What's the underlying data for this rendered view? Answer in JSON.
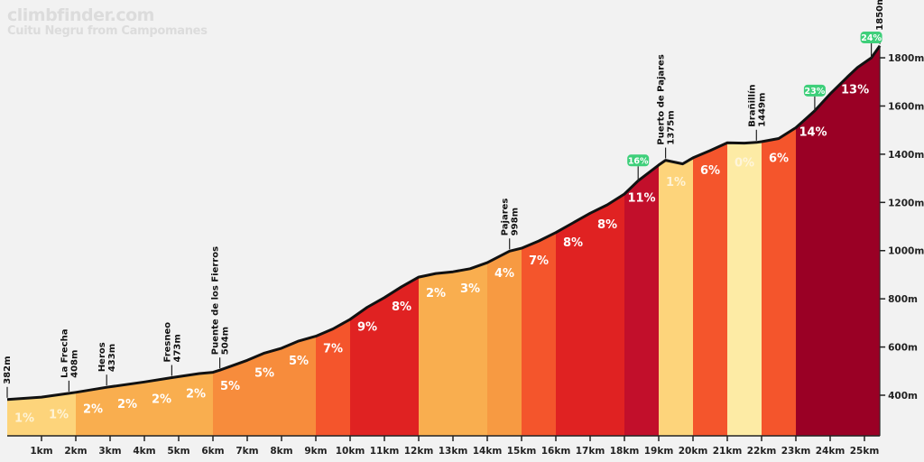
{
  "header": {
    "site": "climbfinder.com",
    "climb_name": "Cuitu Negru from Campomanes"
  },
  "chart_data": {
    "type": "area",
    "title": "Cuitu Negru from Campomanes",
    "xlabel": "",
    "ylabel": "",
    "x_unit": "km",
    "y_unit": "m",
    "xlim": [
      0,
      25.45
    ],
    "ylim": [
      230,
      1860
    ],
    "x_ticks": [
      1,
      2,
      3,
      4,
      5,
      6,
      7,
      8,
      9,
      10,
      11,
      12,
      13,
      14,
      15,
      16,
      17,
      18,
      19,
      20,
      21,
      22,
      23,
      24,
      25
    ],
    "x_tick_labels": [
      "1km",
      "2km",
      "3km",
      "4km",
      "5km",
      "6km",
      "7km",
      "8km",
      "9km",
      "10km",
      "11km",
      "12km",
      "13km",
      "14km",
      "15km",
      "16km",
      "17km",
      "18km",
      "19km",
      "20km",
      "21km",
      "22km",
      "23km",
      "24km",
      "25km"
    ],
    "y_ticks": [
      400,
      600,
      800,
      1000,
      1200,
      1400,
      1600,
      1800
    ],
    "y_tick_labels": [
      "400m",
      "600m",
      "800m",
      "1000m",
      "1200m",
      "1400m",
      "1600m",
      "1800m"
    ],
    "y_axis_position": "right",
    "grid": false,
    "profile": [
      [
        0,
        382
      ],
      [
        1,
        392
      ],
      [
        1.8,
        408
      ],
      [
        2,
        412
      ],
      [
        2.9,
        433
      ],
      [
        4,
        455
      ],
      [
        4.8,
        473
      ],
      [
        5.6,
        490
      ],
      [
        6,
        495
      ],
      [
        6.2,
        504
      ],
      [
        7,
        545
      ],
      [
        7.5,
        575
      ],
      [
        8,
        595
      ],
      [
        8.5,
        625
      ],
      [
        9,
        645
      ],
      [
        9.5,
        675
      ],
      [
        10,
        715
      ],
      [
        10.5,
        765
      ],
      [
        11,
        805
      ],
      [
        11.5,
        850
      ],
      [
        12,
        890
      ],
      [
        12.5,
        905
      ],
      [
        13,
        912
      ],
      [
        13.5,
        925
      ],
      [
        14,
        950
      ],
      [
        14.65,
        998
      ],
      [
        15,
        1010
      ],
      [
        15.5,
        1040
      ],
      [
        16,
        1075
      ],
      [
        16.5,
        1115
      ],
      [
        17,
        1155
      ],
      [
        17.5,
        1190
      ],
      [
        18,
        1235
      ],
      [
        18.4,
        1290
      ],
      [
        19,
        1355
      ],
      [
        19.2,
        1375
      ],
      [
        19.7,
        1360
      ],
      [
        20,
        1385
      ],
      [
        20.5,
        1415
      ],
      [
        21,
        1447
      ],
      [
        21.5,
        1446
      ],
      [
        21.85,
        1449
      ],
      [
        22,
        1452
      ],
      [
        22.5,
        1465
      ],
      [
        23,
        1510
      ],
      [
        23.55,
        1580
      ],
      [
        24,
        1650
      ],
      [
        24.5,
        1720
      ],
      [
        24.8,
        1760
      ],
      [
        25.2,
        1800
      ],
      [
        25.45,
        1850
      ]
    ],
    "segments": [
      {
        "from": 0,
        "to": 1,
        "grade": "1%",
        "color": "#fdd47b"
      },
      {
        "from": 1,
        "to": 2,
        "grade": "1%",
        "color": "#fdd47b"
      },
      {
        "from": 2,
        "to": 3,
        "grade": "2%",
        "color": "#f9ae4f"
      },
      {
        "from": 3,
        "to": 4,
        "grade": "2%",
        "color": "#f9ae4f"
      },
      {
        "from": 4,
        "to": 5,
        "grade": "2%",
        "color": "#f9ae4f"
      },
      {
        "from": 5,
        "to": 6,
        "grade": "2%",
        "color": "#f9ae4f"
      },
      {
        "from": 6,
        "to": 7,
        "grade": "5%",
        "color": "#f78c3c"
      },
      {
        "from": 7,
        "to": 8,
        "grade": "5%",
        "color": "#f78c3c"
      },
      {
        "from": 8,
        "to": 9,
        "grade": "5%",
        "color": "#f78c3c"
      },
      {
        "from": 9,
        "to": 10,
        "grade": "7%",
        "color": "#f4552c"
      },
      {
        "from": 10,
        "to": 11,
        "grade": "9%",
        "color": "#e02222"
      },
      {
        "from": 11,
        "to": 12,
        "grade": "8%",
        "color": "#e02222"
      },
      {
        "from": 12,
        "to": 13,
        "grade": "2%",
        "color": "#f9ae4f"
      },
      {
        "from": 13,
        "to": 14,
        "grade": "3%",
        "color": "#f9ae4f"
      },
      {
        "from": 14,
        "to": 15,
        "grade": "4%",
        "color": "#f79a42"
      },
      {
        "from": 15,
        "to": 16,
        "grade": "7%",
        "color": "#f4552c"
      },
      {
        "from": 16,
        "to": 17,
        "grade": "8%",
        "color": "#e02222"
      },
      {
        "from": 17,
        "to": 18,
        "grade": "8%",
        "color": "#e02222"
      },
      {
        "from": 18,
        "to": 19,
        "grade": "11%",
        "color": "#c20f2b"
      },
      {
        "from": 19,
        "to": 20,
        "grade": "1%",
        "color": "#fdd47b"
      },
      {
        "from": 20,
        "to": 21,
        "grade": "6%",
        "color": "#f4552c"
      },
      {
        "from": 21,
        "to": 22,
        "grade": "0%",
        "color": "#fdeba5"
      },
      {
        "from": 22,
        "to": 23,
        "grade": "6%",
        "color": "#f4552c"
      },
      {
        "from": 23,
        "to": 24,
        "grade": "14%",
        "color": "#9a0025"
      },
      {
        "from": 24,
        "to": 25.45,
        "grade": "13%",
        "color": "#9a0025"
      }
    ],
    "waypoints": [
      {
        "km": 0,
        "name": "",
        "elevation": "382m"
      },
      {
        "km": 1.8,
        "name": "La Frecha",
        "elevation": "408m"
      },
      {
        "km": 2.9,
        "name": "Heros",
        "elevation": "433m"
      },
      {
        "km": 4.8,
        "name": "Fresneo",
        "elevation": "473m"
      },
      {
        "km": 6.2,
        "name": "Puente de los Fierros",
        "elevation": "504m"
      },
      {
        "km": 14.65,
        "name": "Pajares",
        "elevation": "998m"
      },
      {
        "km": 19.2,
        "name": "Puerto de Pajares",
        "elevation": "1375m"
      },
      {
        "km": 21.85,
        "name": "Brañillín",
        "elevation": "1449m"
      },
      {
        "km": 25.45,
        "name": "",
        "elevation": "1850m"
      }
    ],
    "max_gradients": [
      {
        "km": 18.4,
        "label": "16%"
      },
      {
        "km": 23.55,
        "label": "23%"
      },
      {
        "km": 25.2,
        "label": "24%"
      }
    ],
    "badge_color": "#3ecf7a",
    "line_color": "#111111"
  }
}
